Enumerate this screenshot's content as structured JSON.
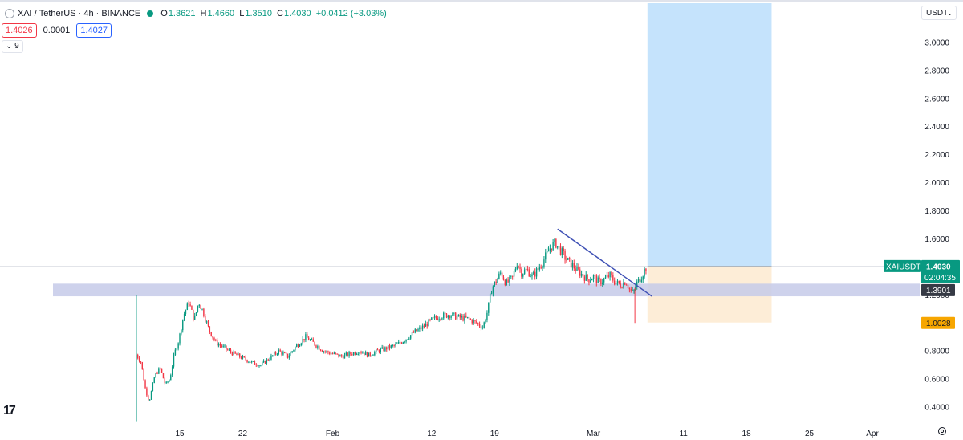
{
  "header": {
    "symbol_title": "XAI / TetherUS · 4h · BINANCE",
    "open_label": "O",
    "open_value": "1.3621",
    "high_label": "H",
    "high_value": "1.4660",
    "low_label": "L",
    "low_value": "1.3510",
    "close_label": "C",
    "close_value": "1.4030",
    "change_value": "+0.0412 (+3.03%)",
    "status_color": "#089981"
  },
  "quote": {
    "bid": "1.4026",
    "spread": "0.0001",
    "ask": "1.4027"
  },
  "indicators": {
    "count_label": "9"
  },
  "toolbar": {
    "currency": "USDT"
  },
  "price_labels": {
    "current_symbol": "XAIUSDT",
    "current_price": "1.4030",
    "countdown": "02:04:35",
    "level_price": "1.3901",
    "stop_price": "1.0028"
  },
  "logo": "17",
  "colors": {
    "up": "#089981",
    "down": "#f23645",
    "target_zone": "#bbdefb",
    "stop_zone": "#fdebd3",
    "support_band": "#c5cae9",
    "trendline": "#3f51b5",
    "current_label": "#089981",
    "stop_label": "#f7a600",
    "level_label": "#363a45"
  },
  "chart_data": {
    "type": "candlestick",
    "y_axis_ticks": [
      3.0,
      2.8,
      2.6,
      2.4,
      2.2,
      2.0,
      1.8,
      1.6,
      1.2,
      1.0,
      0.8,
      0.6,
      0.4
    ],
    "y_axis_tick_labels": [
      "3.0000",
      "2.8000",
      "2.6000",
      "2.4000",
      "2.2000",
      "2.0000",
      "1.8000",
      "1.6000",
      "1.2000",
      "1.0000",
      "0.8000",
      "0.6000",
      "0.4000"
    ],
    "ylim": [
      0.28,
      3.28
    ],
    "x_axis_tick_labels": [
      "15",
      "22",
      "Feb",
      "12",
      "19",
      "Mar",
      "11",
      "18",
      "25",
      "Apr"
    ],
    "x_axis_tick_days": [
      15,
      22,
      32,
      43,
      50,
      61,
      71,
      78,
      85,
      92
    ],
    "x_axis_day_origin": "Jan 1",
    "candle_hours": 4,
    "close_path": [
      [
        10.0,
        0.3
      ],
      [
        10.1,
        0.78
      ],
      [
        10.7,
        0.72
      ],
      [
        11.2,
        0.52
      ],
      [
        11.6,
        0.44
      ],
      [
        12.2,
        0.62
      ],
      [
        12.8,
        0.68
      ],
      [
        13.4,
        0.56
      ],
      [
        13.9,
        0.6
      ],
      [
        14.4,
        0.78
      ],
      [
        14.9,
        0.88
      ],
      [
        15.4,
        1.05
      ],
      [
        16.0,
        1.15
      ],
      [
        16.6,
        1.02
      ],
      [
        17.1,
        1.15
      ],
      [
        17.6,
        1.08
      ],
      [
        18.2,
        0.96
      ],
      [
        19.0,
        0.86
      ],
      [
        20.0,
        0.82
      ],
      [
        21.0,
        0.78
      ],
      [
        22.0,
        0.75
      ],
      [
        23.0,
        0.72
      ],
      [
        24.0,
        0.7
      ],
      [
        25.0,
        0.75
      ],
      [
        26.0,
        0.8
      ],
      [
        27.0,
        0.76
      ],
      [
        28.0,
        0.84
      ],
      [
        29.0,
        0.9
      ],
      [
        30.0,
        0.85
      ],
      [
        31.0,
        0.8
      ],
      [
        32.0,
        0.78
      ],
      [
        33.0,
        0.76
      ],
      [
        34.0,
        0.78
      ],
      [
        35.0,
        0.8
      ],
      [
        36.0,
        0.77
      ],
      [
        37.0,
        0.8
      ],
      [
        38.0,
        0.82
      ],
      [
        39.0,
        0.84
      ],
      [
        40.0,
        0.88
      ],
      [
        41.0,
        0.93
      ],
      [
        42.0,
        0.97
      ],
      [
        43.0,
        1.02
      ],
      [
        44.0,
        1.05
      ],
      [
        45.0,
        1.06
      ],
      [
        46.0,
        1.04
      ],
      [
        47.0,
        1.03
      ],
      [
        48.0,
        1.0
      ],
      [
        48.7,
        0.97
      ],
      [
        49.2,
        1.08
      ],
      [
        49.7,
        1.25
      ],
      [
        50.2,
        1.3
      ],
      [
        50.7,
        1.36
      ],
      [
        51.3,
        1.28
      ],
      [
        52.0,
        1.32
      ],
      [
        52.5,
        1.43
      ],
      [
        53.0,
        1.36
      ],
      [
        53.6,
        1.38
      ],
      [
        54.2,
        1.33
      ],
      [
        54.8,
        1.38
      ],
      [
        55.3,
        1.43
      ],
      [
        55.8,
        1.49
      ],
      [
        56.3,
        1.55
      ],
      [
        56.8,
        1.57
      ],
      [
        57.3,
        1.52
      ],
      [
        57.9,
        1.46
      ],
      [
        58.5,
        1.42
      ],
      [
        59.1,
        1.38
      ],
      [
        59.8,
        1.34
      ],
      [
        60.4,
        1.31
      ],
      [
        61.0,
        1.33
      ],
      [
        61.6,
        1.29
      ],
      [
        62.2,
        1.31
      ],
      [
        62.8,
        1.34
      ],
      [
        63.4,
        1.29
      ],
      [
        64.0,
        1.27
      ],
      [
        64.6,
        1.3
      ],
      [
        65.0,
        1.24
      ],
      [
        65.4,
        1.21
      ],
      [
        65.8,
        1.28
      ],
      [
        66.3,
        1.33
      ],
      [
        66.7,
        1.38
      ],
      [
        66.95,
        1.403
      ]
    ],
    "trendline": {
      "start": [
        57.0,
        1.67
      ],
      "end": [
        67.5,
        1.19
      ]
    },
    "support_band": {
      "from": 1.19,
      "to": 1.28
    },
    "position": {
      "start_day": 67.0,
      "end_day": 80.8,
      "entry": 1.403,
      "target": 3.28,
      "stop": 1.0028
    },
    "current_price_line": 1.403
  }
}
